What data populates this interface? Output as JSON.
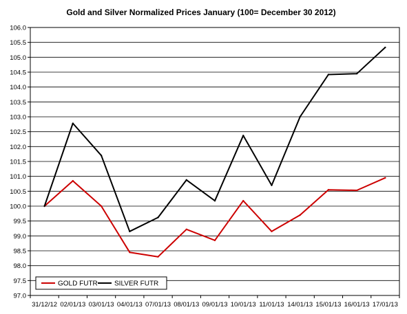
{
  "chart_data": {
    "type": "line",
    "title": "Gold and Silver Normalized Prices January (100= December 30 2012)",
    "xlabel": "",
    "ylabel": "",
    "categories": [
      "31/12/12",
      "02/01/13",
      "03/01/13",
      "04/01/13",
      "07/01/13",
      "08/01/13",
      "09/01/13",
      "10/01/13",
      "11/01/13",
      "14/01/13",
      "15/01/13",
      "16/01/13",
      "17/01/13"
    ],
    "ylim": [
      97.0,
      106.0
    ],
    "ytick_step": 0.5,
    "grid": true,
    "legend_position": "bottom-left",
    "series": [
      {
        "name": "GOLD  FUTR",
        "color": "#cc0000",
        "values": [
          100.0,
          100.85,
          100.0,
          98.45,
          98.3,
          99.22,
          98.85,
          100.18,
          99.15,
          99.7,
          100.55,
          100.53,
          100.95
        ]
      },
      {
        "name": "SILVER  FUTR",
        "color": "#000000",
        "values": [
          100.0,
          102.78,
          101.7,
          99.15,
          99.62,
          100.88,
          100.18,
          102.37,
          100.7,
          103.0,
          104.42,
          104.45,
          105.33
        ]
      }
    ]
  }
}
